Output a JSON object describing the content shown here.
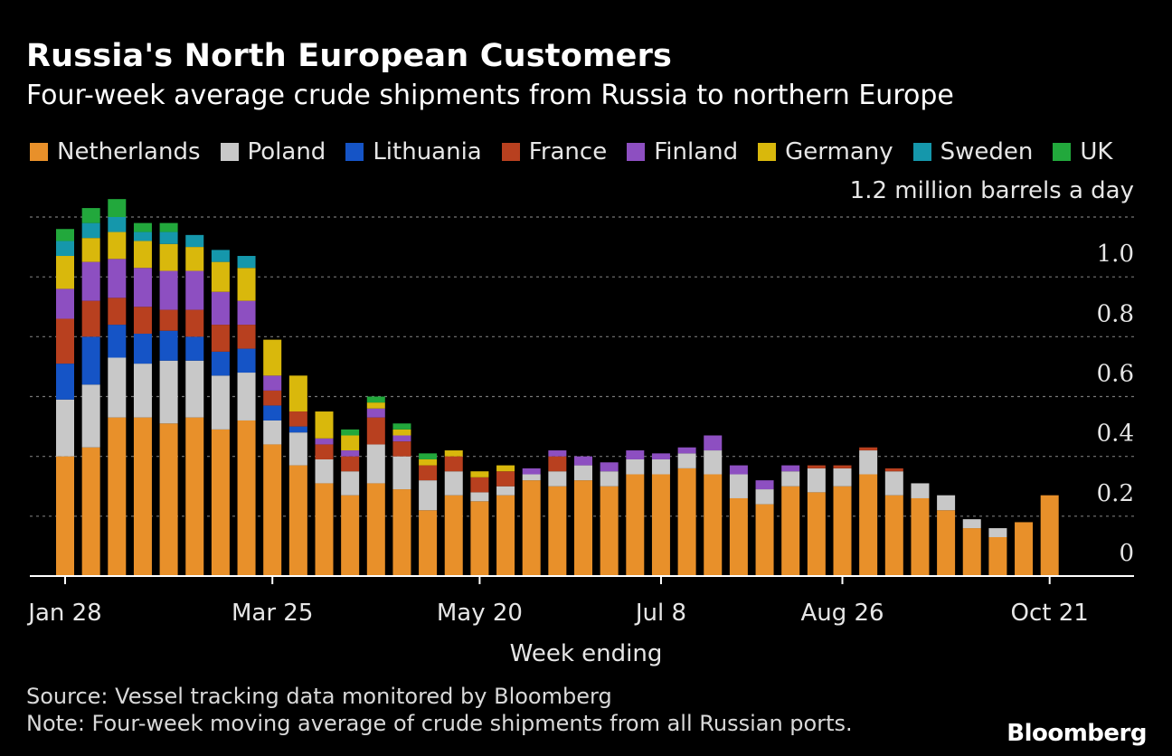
{
  "header": {
    "title": "Russia's North European Customers",
    "subtitle": "Four-week average crude shipments from Russia to northern Europe"
  },
  "legend": [
    {
      "name": "Netherlands",
      "color": "#e8902a"
    },
    {
      "name": "Poland",
      "color": "#c8c8c8"
    },
    {
      "name": "Lithuania",
      "color": "#1554c6"
    },
    {
      "name": "France",
      "color": "#b8401f"
    },
    {
      "name": "Finland",
      "color": "#8d4fc1"
    },
    {
      "name": "Germany",
      "color": "#d9b80c"
    },
    {
      "name": "Sweden",
      "color": "#1597ab"
    },
    {
      "name": "UK",
      "color": "#22a83c"
    }
  ],
  "chart_data": {
    "type": "bar",
    "stacked": true,
    "unit_label": "1.2 million barrels a day",
    "xlabel": "Week ending",
    "ylim": [
      0,
      1.2
    ],
    "yticks": [
      "0",
      "0.2",
      "0.4",
      "0.6",
      "0.8",
      "1.0"
    ],
    "ytick_values": [
      0,
      0.2,
      0.4,
      0.6,
      0.8,
      1.0
    ],
    "grid": true,
    "xtick_labels": [
      {
        "label": "Jan 28",
        "index": 0
      },
      {
        "label": "Mar 25",
        "index": 8
      },
      {
        "label": "May 20",
        "index": 16
      },
      {
        "label": "Jul 8",
        "index": 23
      },
      {
        "label": "Aug 26",
        "index": 30
      },
      {
        "label": "Oct 21",
        "index": 38
      }
    ],
    "categories": [
      "1",
      "2",
      "3",
      "4",
      "5",
      "6",
      "7",
      "8",
      "9",
      "10",
      "11",
      "12",
      "13",
      "14",
      "15",
      "16",
      "17",
      "18",
      "19",
      "20",
      "21",
      "22",
      "23",
      "24",
      "25",
      "26",
      "27",
      "28",
      "29",
      "30",
      "31",
      "32",
      "33",
      "34",
      "35",
      "36",
      "37",
      "38",
      "39"
    ],
    "series": [
      {
        "name": "Netherlands",
        "values": [
          0.4,
          0.43,
          0.53,
          0.53,
          0.51,
          0.53,
          0.49,
          0.52,
          0.44,
          0.37,
          0.31,
          0.27,
          0.31,
          0.29,
          0.22,
          0.27,
          0.25,
          0.27,
          0.32,
          0.3,
          0.32,
          0.3,
          0.34,
          0.34,
          0.36,
          0.34,
          0.26,
          0.24,
          0.3,
          0.28,
          0.3,
          0.34,
          0.27,
          0.26,
          0.22,
          0.16,
          0.13,
          0.18,
          0.27
        ]
      },
      {
        "name": "Poland",
        "values": [
          0.19,
          0.21,
          0.2,
          0.18,
          0.21,
          0.19,
          0.18,
          0.16,
          0.08,
          0.11,
          0.08,
          0.08,
          0.13,
          0.11,
          0.1,
          0.08,
          0.03,
          0.03,
          0.02,
          0.05,
          0.05,
          0.05,
          0.05,
          0.05,
          0.05,
          0.08,
          0.08,
          0.05,
          0.05,
          0.08,
          0.06,
          0.08,
          0.08,
          0.05,
          0.05,
          0.03,
          0.03,
          0,
          0
        ]
      },
      {
        "name": "Lithuania",
        "values": [
          0.12,
          0.16,
          0.11,
          0.1,
          0.1,
          0.08,
          0.08,
          0.08,
          0.05,
          0.02,
          0,
          0,
          0,
          0,
          0,
          0,
          0,
          0,
          0,
          0,
          0,
          0,
          0,
          0,
          0,
          0,
          0,
          0,
          0,
          0,
          0,
          0,
          0,
          0,
          0,
          0,
          0,
          0,
          0
        ]
      },
      {
        "name": "France",
        "values": [
          0.15,
          0.12,
          0.09,
          0.09,
          0.07,
          0.09,
          0.09,
          0.08,
          0.05,
          0.05,
          0.05,
          0.05,
          0.09,
          0.05,
          0.05,
          0.05,
          0.05,
          0.05,
          0,
          0.05,
          0,
          0,
          0,
          0,
          0,
          0,
          0,
          0,
          0,
          0.01,
          0.01,
          0.01,
          0.01,
          0,
          0,
          0,
          0,
          0,
          0
        ]
      },
      {
        "name": "Finland",
        "values": [
          0.1,
          0.13,
          0.13,
          0.13,
          0.13,
          0.13,
          0.11,
          0.08,
          0.05,
          0,
          0.02,
          0.02,
          0.03,
          0.02,
          0,
          0,
          0,
          0,
          0.02,
          0.02,
          0.03,
          0.03,
          0.03,
          0.02,
          0.02,
          0.05,
          0.03,
          0.03,
          0.02,
          0,
          0,
          0,
          0,
          0,
          0,
          0,
          0,
          0,
          0
        ]
      },
      {
        "name": "Germany",
        "values": [
          0.11,
          0.08,
          0.09,
          0.09,
          0.09,
          0.08,
          0.1,
          0.11,
          0.12,
          0.12,
          0.09,
          0.05,
          0.02,
          0.02,
          0.02,
          0.02,
          0.02,
          0.02,
          0,
          0,
          0,
          0,
          0,
          0,
          0,
          0,
          0,
          0,
          0,
          0,
          0,
          0,
          0,
          0,
          0,
          0,
          0,
          0,
          0
        ]
      },
      {
        "name": "Sweden",
        "values": [
          0.05,
          0.05,
          0.05,
          0.03,
          0.04,
          0.04,
          0.04,
          0.04,
          0,
          0,
          0,
          0,
          0,
          0,
          0,
          0,
          0,
          0,
          0,
          0,
          0,
          0,
          0,
          0,
          0,
          0,
          0,
          0,
          0,
          0,
          0,
          0,
          0,
          0,
          0,
          0,
          0,
          0,
          0
        ]
      },
      {
        "name": "UK",
        "values": [
          0.04,
          0.05,
          0.06,
          0.03,
          0.03,
          0,
          0,
          0,
          0,
          0,
          0,
          0.02,
          0.02,
          0.02,
          0.02,
          0,
          0,
          0,
          0,
          0,
          0,
          0,
          0,
          0,
          0,
          0,
          0,
          0,
          0,
          0,
          0,
          0,
          0,
          0,
          0,
          0,
          0,
          0,
          0
        ]
      }
    ]
  },
  "footer": {
    "source": "Source: Vessel tracking data monitored by Bloomberg",
    "note": "Note: Four-week moving average of crude shipments from all Russian ports.",
    "logo": "Bloomberg"
  }
}
